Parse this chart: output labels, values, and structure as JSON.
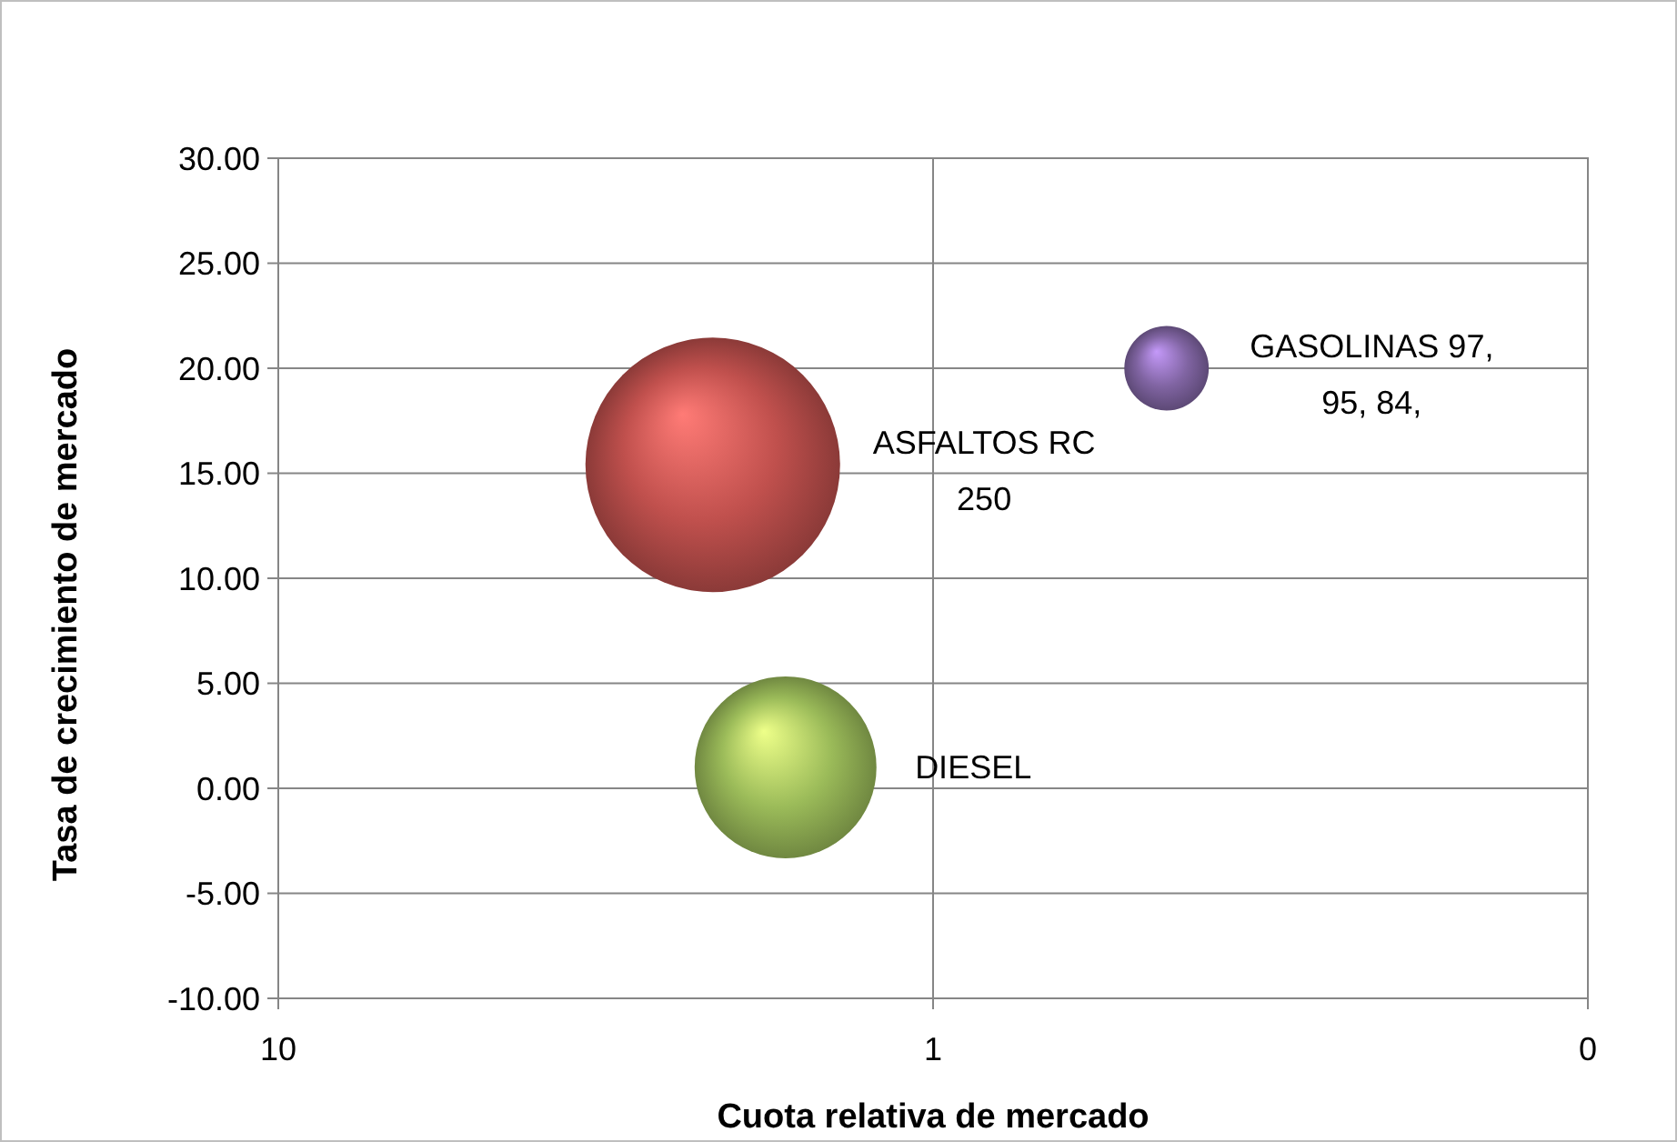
{
  "chart_data": {
    "type": "bubble",
    "xlabel": "Cuota relativa de mercado",
    "ylabel": "Tasa de crecimiento de mercado",
    "log": "x",
    "xlim": [
      10,
      0.1
    ],
    "xticks": [
      10,
      1,
      {
        "value": 0.1,
        "label": "0"
      }
    ],
    "ylim": [
      -10,
      30
    ],
    "yticks": [
      {
        "value": -10,
        "label": "-10.00"
      },
      {
        "value": -5,
        "label": "-5.00"
      },
      {
        "value": 0,
        "label": "0.00"
      },
      {
        "value": 5,
        "label": "5.00"
      },
      {
        "value": 10,
        "label": "10.00"
      },
      {
        "value": 15,
        "label": "15.00"
      },
      {
        "value": 20,
        "label": "20.00"
      },
      {
        "value": 25,
        "label": "25.00"
      },
      {
        "value": 30,
        "label": "30.00"
      }
    ],
    "grid": true,
    "series": [
      {
        "name": "ASFALTOS RC 250",
        "color": "#c0504d",
        "x": [
          2.17
        ],
        "values": [
          15.4
        ],
        "sizes": [
          1
        ]
      },
      {
        "name": "DIESEL",
        "color": "#9bbb59",
        "x": [
          1.68
        ],
        "values": [
          1
        ],
        "sizes": [
          0.51
        ]
      },
      {
        "name": "GASOLINAS 97, 95, 84,",
        "color": "#8064a2",
        "x": [
          0.44
        ],
        "values": [
          20
        ],
        "sizes": [
          0.11
        ]
      }
    ]
  }
}
